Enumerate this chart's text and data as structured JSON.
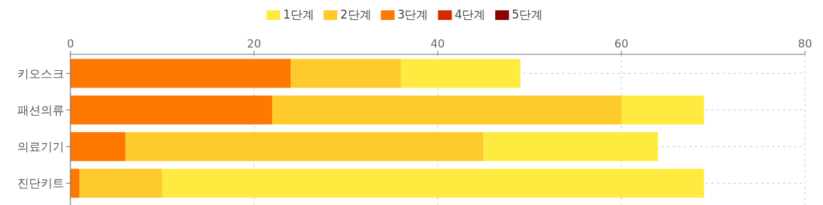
{
  "chart_data": {
    "type": "bar",
    "orientation": "horizontal",
    "stacked": true,
    "categories": [
      "키오스크",
      "패션의류",
      "의료기기",
      "진단키트"
    ],
    "series": [
      {
        "name": "5단계",
        "color": "#8b0000",
        "values": [
          0,
          0,
          0,
          0
        ]
      },
      {
        "name": "4단계",
        "color": "#d42a00",
        "values": [
          0,
          0,
          0,
          0
        ]
      },
      {
        "name": "3단계",
        "color": "#ff7800",
        "values": [
          24,
          22,
          6,
          1
        ]
      },
      {
        "name": "2단계",
        "color": "#ffca2c",
        "values": [
          12,
          38,
          39,
          9
        ]
      },
      {
        "name": "1단계",
        "color": "#ffeb3f",
        "values": [
          13,
          9,
          19,
          59
        ]
      }
    ],
    "xlim": [
      0,
      80
    ],
    "xticks": [
      0,
      20,
      40,
      60,
      80
    ],
    "grid": true,
    "legend": "top"
  }
}
